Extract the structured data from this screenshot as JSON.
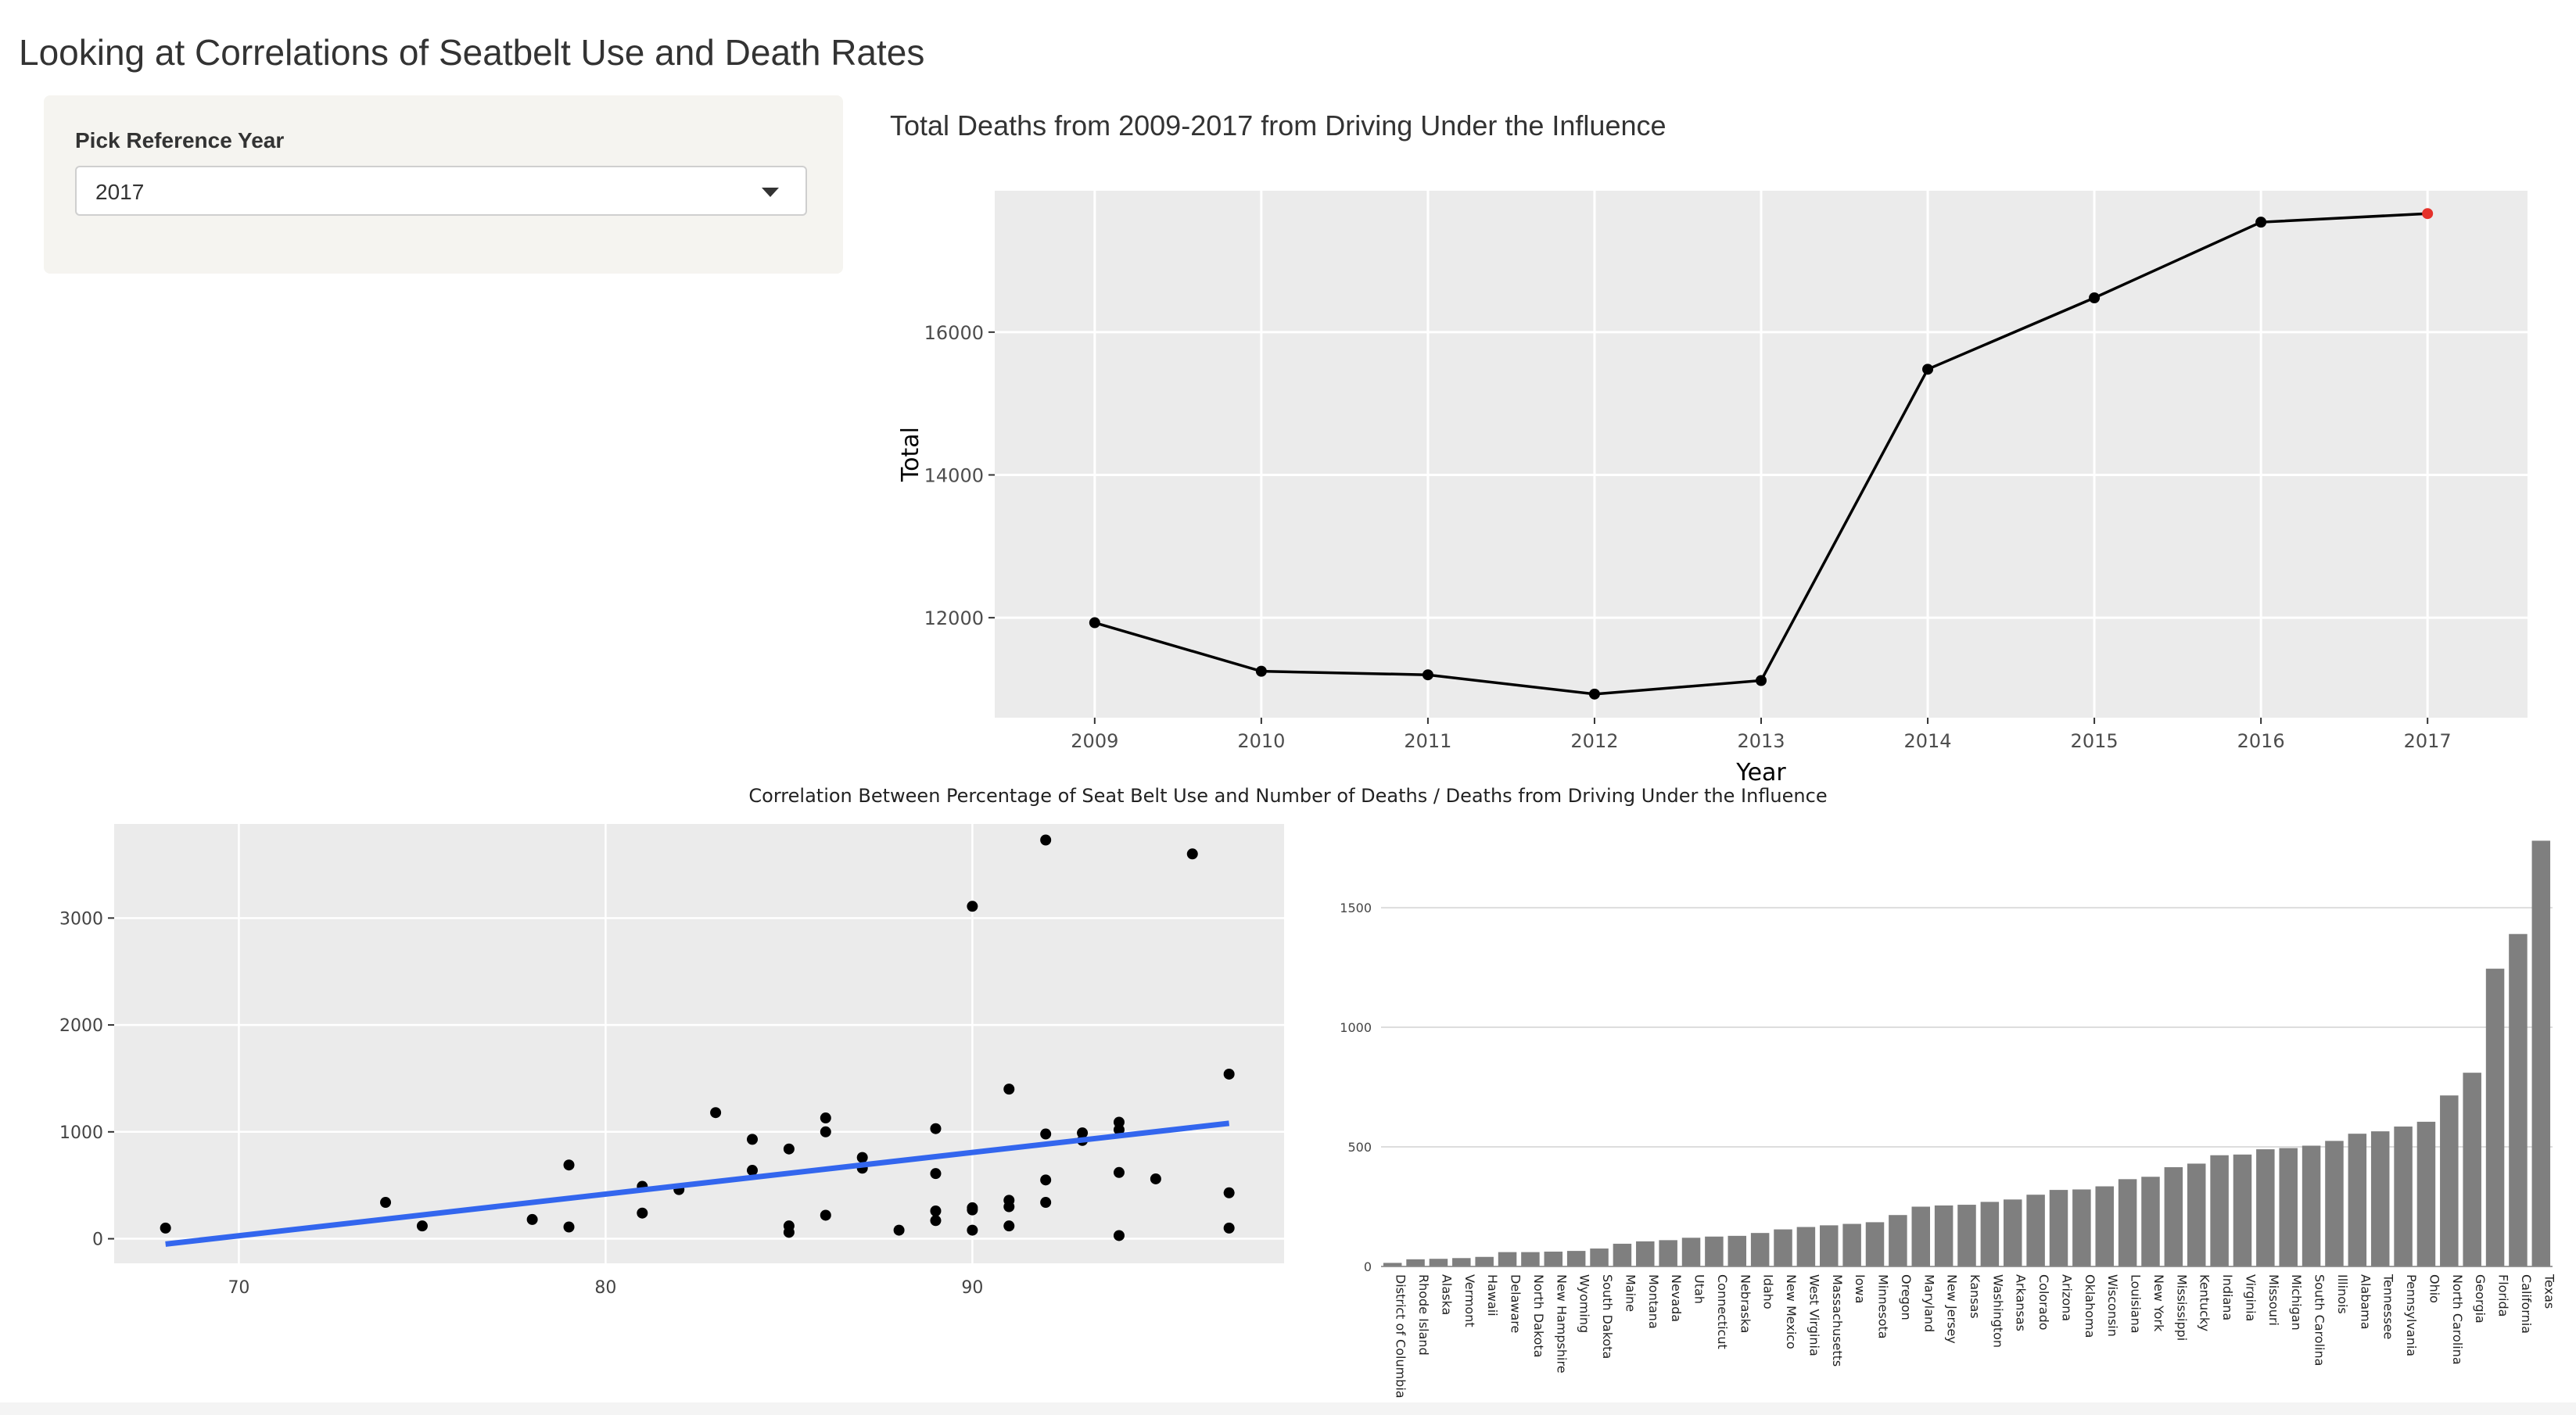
{
  "page": {
    "title": "Looking at Correlations of Seatbelt Use and Death Rates"
  },
  "sidebar": {
    "select_label": "Pick Reference Year",
    "selected_year": "2017",
    "caret_icon": "caret-down-icon"
  },
  "colors": {
    "highlight": "#e5312a",
    "trend": "#3366ee",
    "bar": "#7f7f7f",
    "panel": "#ebebeb",
    "sidebar": "#f5f4f0"
  },
  "chart_data": [
    {
      "type": "line",
      "title": "Total Deaths from 2009-2017 from Driving Under the Influence",
      "xlabel": "Year",
      "ylabel": "Total",
      "x": [
        2009,
        2010,
        2011,
        2012,
        2013,
        2014,
        2015,
        2016,
        2017
      ],
      "y": [
        11930,
        11250,
        11200,
        10930,
        11120,
        15480,
        16480,
        17540,
        17660
      ],
      "highlight_x": 2017,
      "yticks": [
        12000,
        14000,
        16000
      ],
      "ylim": [
        10600,
        17980
      ],
      "xlim": [
        2008.4,
        2017.6
      ],
      "grid": true
    },
    {
      "type": "scatter",
      "title": "Correlation Between Percentage of Seat Belt Use and Number of Deaths / Deaths from Driving Under the Influence",
      "xticks": [
        70,
        80,
        90
      ],
      "yticks": [
        0,
        1000,
        2000,
        3000
      ],
      "xlim": [
        66.6,
        98.5
      ],
      "ylim": [
        -230,
        3880
      ],
      "points": [
        [
          68,
          100
        ],
        [
          74,
          340
        ],
        [
          75,
          120
        ],
        [
          78,
          180
        ],
        [
          79,
          690
        ],
        [
          79,
          110
        ],
        [
          81,
          490
        ],
        [
          81,
          240
        ],
        [
          82,
          460
        ],
        [
          83,
          1180
        ],
        [
          84,
          930
        ],
        [
          84,
          640
        ],
        [
          85,
          840
        ],
        [
          85,
          120
        ],
        [
          85,
          60
        ],
        [
          86,
          1130
        ],
        [
          86,
          1000
        ],
        [
          86,
          220
        ],
        [
          87,
          760
        ],
        [
          87,
          660
        ],
        [
          88,
          80
        ],
        [
          89,
          1030
        ],
        [
          89,
          610
        ],
        [
          89,
          260
        ],
        [
          89,
          170
        ],
        [
          90,
          3110
        ],
        [
          90,
          290
        ],
        [
          90,
          270
        ],
        [
          90,
          80
        ],
        [
          91,
          1400
        ],
        [
          91,
          360
        ],
        [
          91,
          300
        ],
        [
          91,
          120
        ],
        [
          92,
          3730
        ],
        [
          92,
          980
        ],
        [
          92,
          550
        ],
        [
          92,
          340
        ],
        [
          93,
          990
        ],
        [
          93,
          920
        ],
        [
          94,
          1090
        ],
        [
          94,
          1020
        ],
        [
          94,
          620
        ],
        [
          94,
          30
        ],
        [
          95,
          560
        ],
        [
          96,
          3600
        ],
        [
          97,
          1540
        ],
        [
          97,
          430
        ],
        [
          97,
          100
        ]
      ],
      "trend_line": {
        "x": [
          68,
          97
        ],
        "y": [
          -50,
          1080
        ]
      },
      "grid": true
    },
    {
      "type": "bar",
      "yticks": [
        0,
        500,
        1000,
        1500
      ],
      "ylim": [
        0,
        1850
      ],
      "categories": [
        "District of Columbia",
        "Rhode Island",
        "Alaska",
        "Vermont",
        "Hawaii",
        "Delaware",
        "North Dakota",
        "New Hampshire",
        "Wyoming",
        "South Dakota",
        "Maine",
        "Montana",
        "Nevada",
        "Utah",
        "Connecticut",
        "Nebraska",
        "Idaho",
        "New Mexico",
        "West Virginia",
        "Massachusetts",
        "Iowa",
        "Minnesota",
        "Oregon",
        "Maryland",
        "New Jersey",
        "Kansas",
        "Washington",
        "Arkansas",
        "Colorado",
        "Arizona",
        "Oklahoma",
        "Wisconsin",
        "Louisiana",
        "New York",
        "Mississippi",
        "Kentucky",
        "Indiana",
        "Virginia",
        "Missouri",
        "Michigan",
        "South Carolina",
        "Illinois",
        "Alabama",
        "Tennessee",
        "Pennsylvania",
        "Ohio",
        "North Carolina",
        "Georgia",
        "Florida",
        "California",
        "Texas"
      ],
      "values": [
        15,
        30,
        32,
        35,
        40,
        60,
        60,
        62,
        65,
        75,
        95,
        105,
        110,
        120,
        125,
        128,
        140,
        155,
        165,
        172,
        178,
        185,
        215,
        250,
        255,
        258,
        270,
        280,
        300,
        320,
        322,
        335,
        365,
        375,
        415,
        430,
        465,
        468,
        490,
        495,
        505,
        525,
        555,
        565,
        585,
        605,
        715,
        810,
        1245,
        1390,
        1780
      ],
      "grid": true
    }
  ]
}
